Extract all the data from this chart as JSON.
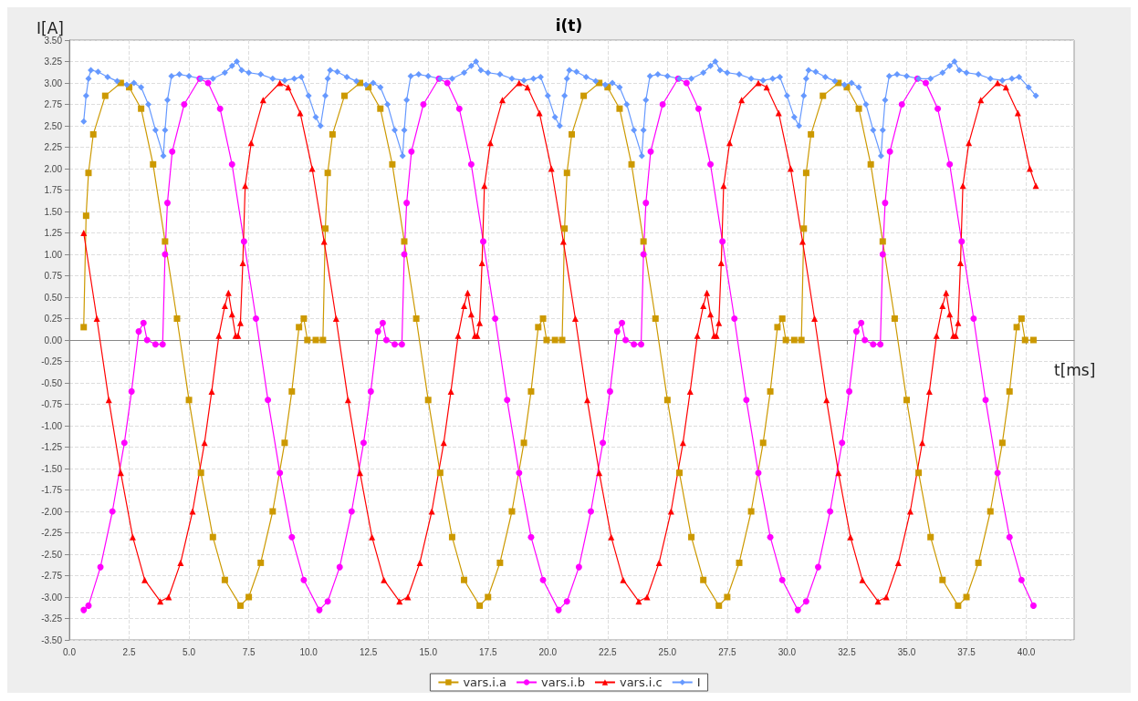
{
  "chart_data": {
    "type": "line",
    "title": "i(t)",
    "xlabel": "t[ms]",
    "ylabel": "I[A]",
    "xlim": [
      0,
      42
    ],
    "ylim": [
      -3.5,
      3.5
    ],
    "xticks": [
      {
        "value": 0,
        "label": "0.0"
      },
      2.5,
      {
        "value": 5,
        "label": "5.0"
      },
      7.5,
      {
        "value": 10,
        "label": "10.0"
      },
      12.5,
      {
        "value": 15,
        "label": "15.0"
      },
      17.5,
      {
        "value": 20,
        "label": "20.0"
      },
      22.5,
      {
        "value": 25,
        "label": "25.0"
      },
      27.5,
      {
        "value": 30,
        "label": "30.0"
      },
      32.5,
      {
        "value": 35,
        "label": "35.0"
      },
      37.5,
      {
        "value": 40,
        "label": "40.0"
      }
    ],
    "yticks": [
      {
        "value": -3.5,
        "label": "-3.50"
      },
      -3.25,
      {
        "value": -3,
        "label": "-3.00"
      },
      -2.75,
      {
        "value": -2.5,
        "label": "-2.50"
      },
      -2.25,
      {
        "value": -2,
        "label": "-2.00"
      },
      -1.75,
      {
        "value": -1.5,
        "label": "-1.50"
      },
      -1.25,
      {
        "value": -1,
        "label": "-1.00"
      },
      -0.75,
      {
        "value": -0.5,
        "label": "-0.50"
      },
      -0.25,
      {
        "value": 0,
        "label": "0.00"
      },
      0.25,
      {
        "value": 0.5,
        "label": "0.50"
      },
      0.75,
      {
        "value": 1,
        "label": "1.00"
      },
      1.25,
      {
        "value": 1.5,
        "label": "1.50"
      },
      1.75,
      {
        "value": 2,
        "label": "2.00"
      },
      2.25,
      {
        "value": 2.5,
        "label": "2.50"
      },
      2.75,
      {
        "value": 3,
        "label": "3.00"
      },
      3.25,
      {
        "value": 3.5,
        "label": "3.50"
      }
    ],
    "grid": true,
    "legend": "bottom",
    "line_style": "solid",
    "series": [
      {
        "name": "vars.i.a",
        "color": "#cc9900",
        "marker": "square",
        "x": [
          0.6,
          0.7,
          0.8,
          1.0,
          1.5,
          2.15,
          2.5,
          3.0,
          3.5,
          4.0,
          4.5,
          5.0,
          5.5,
          6.0,
          6.5,
          7.15,
          7.5,
          8.0,
          8.5,
          9.0,
          9.3,
          9.6,
          9.8,
          9.95,
          10.3,
          10.6,
          10.7,
          10.8,
          11.0,
          11.5,
          12.15,
          12.5,
          13.0,
          13.5,
          14.0,
          14.5,
          15.0,
          15.5,
          16.0,
          16.5,
          17.15,
          17.5,
          18.0,
          18.5,
          19.0,
          19.3,
          19.6,
          19.8,
          19.95,
          20.3,
          20.6,
          20.7,
          20.8,
          21.0,
          21.5,
          22.15,
          22.5,
          23.0,
          23.5,
          24.0,
          24.5,
          25.0,
          25.5,
          26.0,
          26.5,
          27.15,
          27.5,
          28.0,
          28.5,
          29.0,
          29.3,
          29.6,
          29.8,
          29.95,
          30.3,
          30.6,
          30.7,
          30.8,
          31.0,
          31.5,
          32.15,
          32.5,
          33.0,
          33.5,
          34.0,
          34.5,
          35.0,
          35.5,
          36.0,
          36.5,
          37.15,
          37.5,
          38.0,
          38.5,
          39.0,
          39.3,
          39.6,
          39.8,
          39.95,
          40.3
        ],
        "values": [
          0.15,
          1.45,
          1.95,
          2.4,
          2.85,
          3.0,
          2.95,
          2.7,
          2.05,
          1.15,
          0.25,
          -0.7,
          -1.55,
          -2.3,
          -2.8,
          -3.1,
          -3.0,
          -2.6,
          -2.0,
          -1.2,
          -0.6,
          0.15,
          0.25,
          0.0,
          0.0,
          0.0,
          1.3,
          1.95,
          2.4,
          2.85,
          3.0,
          2.95,
          2.7,
          2.05,
          1.15,
          0.25,
          -0.7,
          -1.55,
          -2.3,
          -2.8,
          -3.1,
          -3.0,
          -2.6,
          -2.0,
          -1.2,
          -0.6,
          0.15,
          0.25,
          0.0,
          0.0,
          0.0,
          1.3,
          1.95,
          2.4,
          2.85,
          3.0,
          2.95,
          2.7,
          2.05,
          1.15,
          0.25,
          -0.7,
          -1.55,
          -2.3,
          -2.8,
          -3.1,
          -3.0,
          -2.6,
          -2.0,
          -1.2,
          -0.6,
          0.15,
          0.25,
          0.0,
          0.0,
          0.0,
          1.3,
          1.95,
          2.4,
          2.85,
          3.0,
          2.95,
          2.7,
          2.05,
          1.15,
          0.25,
          -0.7,
          -1.55,
          -2.3,
          -2.8,
          -3.1,
          -3.0,
          -2.6,
          -2.0,
          -1.2,
          -0.6,
          0.15,
          0.25,
          0.0,
          0.0
        ]
      },
      {
        "name": "vars.i.b",
        "color": "#ff00ff",
        "marker": "circle",
        "x": [
          0.6,
          0.8,
          1.3,
          1.8,
          2.3,
          2.6,
          2.9,
          3.1,
          3.25,
          3.6,
          3.9,
          4.0,
          4.1,
          4.3,
          4.8,
          5.45,
          5.8,
          6.3,
          6.8,
          7.3,
          7.8,
          8.3,
          8.8,
          9.3,
          9.8,
          10.45,
          10.8,
          11.3,
          11.8,
          12.3,
          12.6,
          12.9,
          13.1,
          13.25,
          13.6,
          13.9,
          14.0,
          14.1,
          14.3,
          14.8,
          15.45,
          15.8,
          16.3,
          16.8,
          17.3,
          17.8,
          18.3,
          18.8,
          19.3,
          19.8,
          20.45,
          20.8,
          21.3,
          21.8,
          22.3,
          22.6,
          22.9,
          23.1,
          23.25,
          23.6,
          23.9,
          24.0,
          24.1,
          24.3,
          24.8,
          25.45,
          25.8,
          26.3,
          26.8,
          27.3,
          27.8,
          28.3,
          28.8,
          29.3,
          29.8,
          30.45,
          30.8,
          31.3,
          31.8,
          32.3,
          32.6,
          32.9,
          33.1,
          33.25,
          33.6,
          33.9,
          34.0,
          34.1,
          34.3,
          34.8,
          35.45,
          35.8,
          36.3,
          36.8,
          37.3,
          37.8,
          38.3,
          38.8,
          39.3,
          39.8,
          40.3
        ],
        "values": [
          -3.15,
          -3.1,
          -2.65,
          -2.0,
          -1.2,
          -0.6,
          0.1,
          0.2,
          0.0,
          -0.05,
          -0.05,
          1.0,
          1.6,
          2.2,
          2.75,
          3.05,
          3.0,
          2.7,
          2.05,
          1.15,
          0.25,
          -0.7,
          -1.55,
          -2.3,
          -2.8,
          -3.15,
          -3.05,
          -2.65,
          -2.0,
          -1.2,
          -0.6,
          0.1,
          0.2,
          0.0,
          -0.05,
          -0.05,
          1.0,
          1.6,
          2.2,
          2.75,
          3.05,
          3.0,
          2.7,
          2.05,
          1.15,
          0.25,
          -0.7,
          -1.55,
          -2.3,
          -2.8,
          -3.15,
          -3.05,
          -2.65,
          -2.0,
          -1.2,
          -0.6,
          0.1,
          0.2,
          0.0,
          -0.05,
          -0.05,
          1.0,
          1.6,
          2.2,
          2.75,
          3.05,
          3.0,
          2.7,
          2.05,
          1.15,
          0.25,
          -0.7,
          -1.55,
          -2.3,
          -2.8,
          -3.15,
          -3.05,
          -2.65,
          -2.0,
          -1.2,
          -0.6,
          0.1,
          0.2,
          0.0,
          -0.05,
          -0.05,
          1.0,
          1.6,
          2.2,
          2.75,
          3.05,
          3.0,
          2.7,
          2.05,
          1.15,
          0.25,
          -0.7,
          -1.55,
          -2.3,
          -2.8,
          -3.1
        ]
      },
      {
        "name": "vars.i.c",
        "color": "#ff0000",
        "marker": "triangle",
        "x": [
          0.6,
          1.15,
          1.65,
          2.15,
          2.65,
          3.15,
          3.8,
          4.15,
          4.65,
          5.15,
          5.65,
          5.95,
          6.25,
          6.5,
          6.65,
          6.8,
          6.95,
          7.05,
          7.15,
          7.25,
          7.35,
          7.6,
          8.1,
          8.8,
          9.15,
          9.65,
          10.15,
          10.65,
          11.15,
          11.65,
          12.15,
          12.65,
          13.15,
          13.8,
          14.15,
          14.65,
          15.15,
          15.65,
          15.95,
          16.25,
          16.5,
          16.65,
          16.8,
          16.95,
          17.05,
          17.15,
          17.25,
          17.35,
          17.6,
          18.1,
          18.8,
          19.15,
          19.65,
          20.15,
          20.65,
          21.15,
          21.65,
          22.15,
          22.65,
          23.15,
          23.8,
          24.15,
          24.65,
          25.15,
          25.65,
          25.95,
          26.25,
          26.5,
          26.65,
          26.8,
          26.95,
          27.05,
          27.15,
          27.25,
          27.35,
          27.6,
          28.1,
          28.8,
          29.15,
          29.65,
          30.15,
          30.65,
          31.15,
          31.65,
          32.15,
          32.65,
          33.15,
          33.8,
          34.15,
          34.65,
          35.15,
          35.65,
          35.95,
          36.25,
          36.5,
          36.65,
          36.8,
          36.95,
          37.05,
          37.15,
          37.25,
          37.35,
          37.6,
          38.1,
          38.8,
          39.15,
          39.65,
          40.15,
          40.4
        ],
        "values": [
          1.25,
          0.25,
          -0.7,
          -1.55,
          -2.3,
          -2.8,
          -3.05,
          -3.0,
          -2.6,
          -2.0,
          -1.2,
          -0.6,
          0.05,
          0.4,
          0.55,
          0.3,
          0.05,
          0.05,
          0.2,
          0.9,
          1.8,
          2.3,
          2.8,
          3.0,
          2.95,
          2.65,
          2.0,
          1.15,
          0.25,
          -0.7,
          -1.55,
          -2.3,
          -2.8,
          -3.05,
          -3.0,
          -2.6,
          -2.0,
          -1.2,
          -0.6,
          0.05,
          0.4,
          0.55,
          0.3,
          0.05,
          0.05,
          0.2,
          0.9,
          1.8,
          2.3,
          2.8,
          3.0,
          2.95,
          2.65,
          2.0,
          1.15,
          0.25,
          -0.7,
          -1.55,
          -2.3,
          -2.8,
          -3.05,
          -3.0,
          -2.6,
          -2.0,
          -1.2,
          -0.6,
          0.05,
          0.4,
          0.55,
          0.3,
          0.05,
          0.05,
          0.2,
          0.9,
          1.8,
          2.3,
          2.8,
          3.0,
          2.95,
          2.65,
          2.0,
          1.15,
          0.25,
          -0.7,
          -1.55,
          -2.3,
          -2.8,
          -3.05,
          -3.0,
          -2.6,
          -2.0,
          -1.2,
          -0.6,
          0.05,
          0.4,
          0.55,
          0.3,
          0.05,
          0.05,
          0.2,
          0.9,
          1.8,
          2.3,
          2.8,
          3.0,
          2.95,
          2.65,
          2.0,
          1.8
        ]
      },
      {
        "name": "I",
        "color": "#6699ff",
        "marker": "diamond",
        "x": [
          0.6,
          0.7,
          0.8,
          0.9,
          1.2,
          1.6,
          2.0,
          2.4,
          2.7,
          3.0,
          3.3,
          3.6,
          3.93,
          4.0,
          4.1,
          4.27,
          4.6,
          5.0,
          5.5,
          6.0,
          6.5,
          6.8,
          7.0,
          7.2,
          7.5,
          8.0,
          8.5,
          9.0,
          9.4,
          9.7,
          10.0,
          10.3,
          10.5,
          10.7,
          10.8,
          10.9,
          11.2,
          11.6,
          12.0,
          12.4,
          12.7,
          13.0,
          13.3,
          13.6,
          13.93,
          14.0,
          14.1,
          14.27,
          14.6,
          15.0,
          15.5,
          16.0,
          16.5,
          16.8,
          17.0,
          17.2,
          17.5,
          18.0,
          18.5,
          19.0,
          19.4,
          19.7,
          20.0,
          20.3,
          20.5,
          20.7,
          20.8,
          20.9,
          21.2,
          21.6,
          22.0,
          22.4,
          22.7,
          23.0,
          23.3,
          23.6,
          23.93,
          24.0,
          24.1,
          24.27,
          24.6,
          25.0,
          25.5,
          26.0,
          26.5,
          26.8,
          27.0,
          27.2,
          27.5,
          28.0,
          28.5,
          29.0,
          29.4,
          29.7,
          30.0,
          30.3,
          30.5,
          30.7,
          30.8,
          30.9,
          31.2,
          31.6,
          32.0,
          32.4,
          32.7,
          33.0,
          33.3,
          33.6,
          33.93,
          34.0,
          34.1,
          34.27,
          34.6,
          35.0,
          35.5,
          36.0,
          36.5,
          36.8,
          37.0,
          37.2,
          37.5,
          38.0,
          38.5,
          39.0,
          39.4,
          39.7,
          40.1,
          40.4
        ],
        "values": [
          2.55,
          2.85,
          3.05,
          3.15,
          3.13,
          3.07,
          3.02,
          2.98,
          3.0,
          2.95,
          2.75,
          2.45,
          2.15,
          2.45,
          2.8,
          3.08,
          3.1,
          3.08,
          3.05,
          3.05,
          3.12,
          3.2,
          3.25,
          3.15,
          3.12,
          3.1,
          3.05,
          3.03,
          3.05,
          3.07,
          2.85,
          2.6,
          2.5,
          2.85,
          3.05,
          3.15,
          3.13,
          3.07,
          3.02,
          2.98,
          3.0,
          2.95,
          2.75,
          2.45,
          2.15,
          2.45,
          2.8,
          3.08,
          3.1,
          3.08,
          3.05,
          3.05,
          3.12,
          3.2,
          3.25,
          3.15,
          3.12,
          3.1,
          3.05,
          3.03,
          3.05,
          3.07,
          2.85,
          2.6,
          2.5,
          2.85,
          3.05,
          3.15,
          3.13,
          3.07,
          3.02,
          2.98,
          3.0,
          2.95,
          2.75,
          2.45,
          2.15,
          2.45,
          2.8,
          3.08,
          3.1,
          3.08,
          3.05,
          3.05,
          3.12,
          3.2,
          3.25,
          3.15,
          3.12,
          3.1,
          3.05,
          3.03,
          3.05,
          3.07,
          2.85,
          2.6,
          2.5,
          2.85,
          3.05,
          3.15,
          3.13,
          3.07,
          3.02,
          2.98,
          3.0,
          2.95,
          2.75,
          2.45,
          2.15,
          2.45,
          2.8,
          3.08,
          3.1,
          3.08,
          3.05,
          3.05,
          3.12,
          3.2,
          3.25,
          3.15,
          3.12,
          3.1,
          3.05,
          3.03,
          3.05,
          3.07,
          2.95,
          2.85
        ]
      }
    ]
  }
}
